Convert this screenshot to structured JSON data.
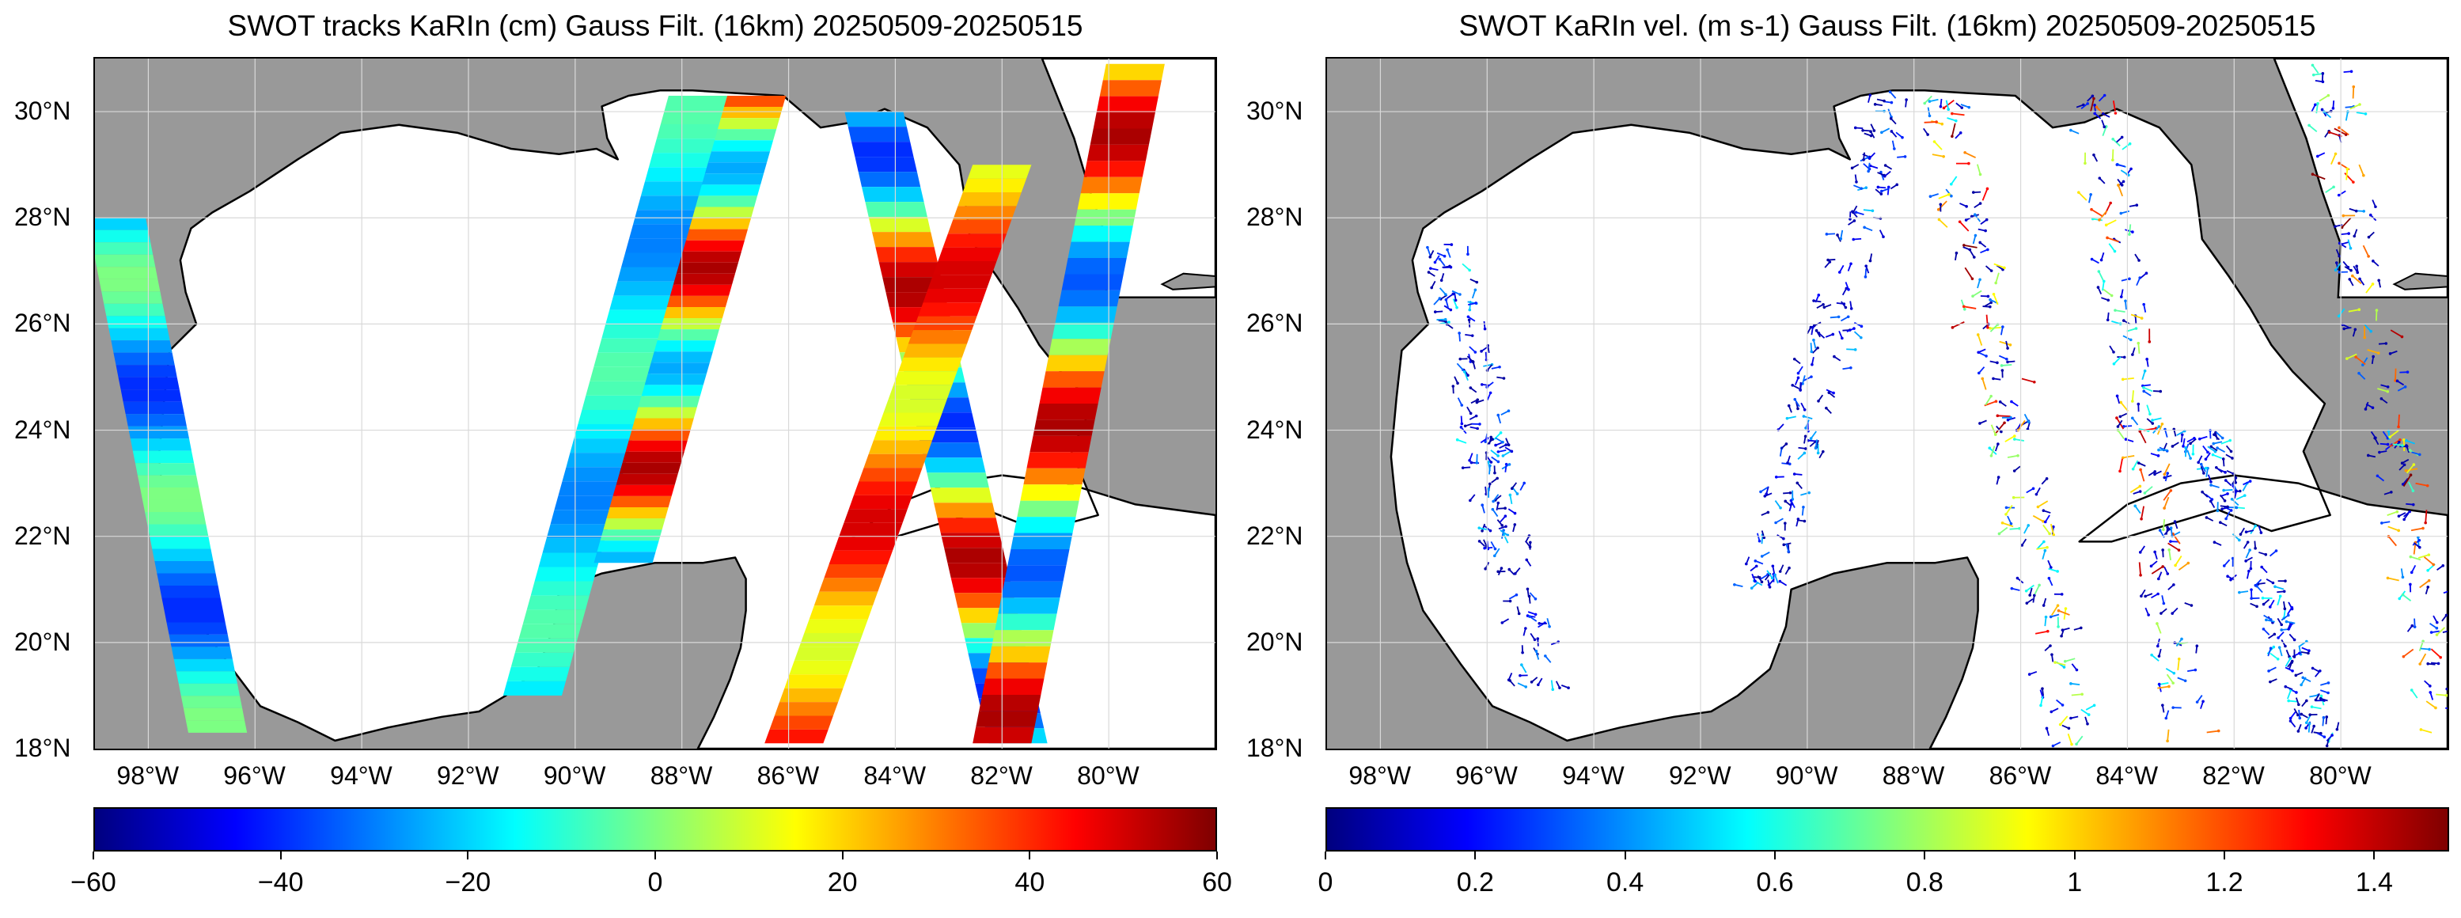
{
  "panels": [
    {
      "id": "left",
      "title": "SWOT tracks KaRIn (cm) Gauss Filt. (16km) 20250509-20250515",
      "y_ticks": [
        "18°N",
        "20°N",
        "22°N",
        "24°N",
        "26°N",
        "28°N",
        "30°N"
      ],
      "x_ticks": [
        "98°W",
        "96°W",
        "94°W",
        "92°W",
        "90°W",
        "88°W",
        "86°W",
        "84°W",
        "82°W",
        "80°W"
      ],
      "colorbar": {
        "min": -60,
        "max": 60,
        "colormap": "jet",
        "labels": [
          "−60",
          "−40",
          "−20",
          "0",
          "20",
          "40",
          "60"
        ]
      }
    },
    {
      "id": "right",
      "title": "SWOT KaRIn vel. (m s-1) Gauss Filt. (16km) 20250509-20250515",
      "y_ticks": [
        "18°N",
        "20°N",
        "22°N",
        "24°N",
        "26°N",
        "28°N",
        "30°N"
      ],
      "x_ticks": [
        "98°W",
        "96°W",
        "94°W",
        "92°W",
        "90°W",
        "88°W",
        "86°W",
        "84°W",
        "82°W",
        "80°W"
      ],
      "colorbar": {
        "min": 0,
        "max": 1.5,
        "colormap": "jet",
        "labels": [
          "0",
          "0.2",
          "0.4",
          "0.6",
          "0.8",
          "1",
          "1.2",
          "1.4"
        ]
      }
    }
  ],
  "map_extent": {
    "lon_min": -99,
    "lon_max": -78,
    "lat_min": 18,
    "lat_max": 31
  },
  "colors": {
    "land": "#999999",
    "ocean": "#ffffff",
    "coast": "#000000",
    "grid": "#d9d9d9"
  },
  "chart_data": [
    {
      "type": "heatmap",
      "title": "SWOT tracks KaRIn (cm) Gauss Filt. (16km) 20250509-20250515",
      "xlabel": "",
      "ylabel": "",
      "xlim": [
        -99,
        -78
      ],
      "ylim": [
        18,
        31
      ],
      "colorbar_range": [
        -60,
        60
      ],
      "swath_segments": [
        {
          "lon_start": -98.6,
          "lon_end": -96.7,
          "lat_start": 28.0,
          "lat_end": 18.3,
          "value_range": [
            -40,
            0
          ]
        },
        {
          "lon_start": -87.7,
          "lon_end": -90.8,
          "lat_start": 30.3,
          "lat_end": 19.0,
          "value_range": [
            -30,
            -5
          ]
        },
        {
          "lon_start": -86.6,
          "lon_end": -89.1,
          "lat_start": 30.3,
          "lat_end": 21.5,
          "value_range": [
            -25,
            55
          ]
        },
        {
          "lon_start": -84.4,
          "lon_end": -81.7,
          "lat_start": 30.0,
          "lat_end": 18.1,
          "value_range": [
            -40,
            55
          ]
        },
        {
          "lon_start": -82.0,
          "lon_end": -85.9,
          "lat_start": 29.0,
          "lat_end": 18.1,
          "value_range": [
            10,
            50
          ]
        },
        {
          "lon_start": -79.5,
          "lon_end": -82.0,
          "lat_start": 30.9,
          "lat_end": 18.1,
          "value_range": [
            -35,
            55
          ]
        }
      ]
    },
    {
      "type": "heatmap",
      "title": "SWOT KaRIn vel. (m s-1) Gauss Filt. (16km) 20250509-20250515",
      "xlabel": "",
      "ylabel": "",
      "xlim": [
        -99,
        -78
      ],
      "ylim": [
        18,
        31
      ],
      "colorbar_range": [
        0,
        1.5
      ],
      "vector_bands": [
        {
          "lon_start": -96.8,
          "lon_end": -95.0,
          "lat_start": 27.5,
          "lat_end": 19.0,
          "speed_range": [
            0.05,
            0.6
          ]
        },
        {
          "lon_start": -88.4,
          "lon_end": -90.8,
          "lat_start": 30.3,
          "lat_end": 21.0,
          "speed_range": [
            0.05,
            0.5
          ]
        },
        {
          "lon_start": -87.5,
          "lon_end": -85.0,
          "lat_start": 30.3,
          "lat_end": 18.1,
          "speed_range": [
            0.05,
            1.5
          ]
        },
        {
          "lon_start": -84.6,
          "lon_end": -82.9,
          "lat_start": 30.3,
          "lat_end": 18.1,
          "speed_range": [
            0.05,
            1.5
          ]
        },
        {
          "lon_start": -82.7,
          "lon_end": -80.3,
          "lat_start": 24.0,
          "lat_end": 18.1,
          "speed_range": [
            0.05,
            0.6
          ]
        },
        {
          "lon_start": -80.3,
          "lon_end": -78.0,
          "lat_start": 30.8,
          "lat_end": 18.1,
          "speed_range": [
            0.05,
            1.5
          ]
        }
      ]
    }
  ]
}
